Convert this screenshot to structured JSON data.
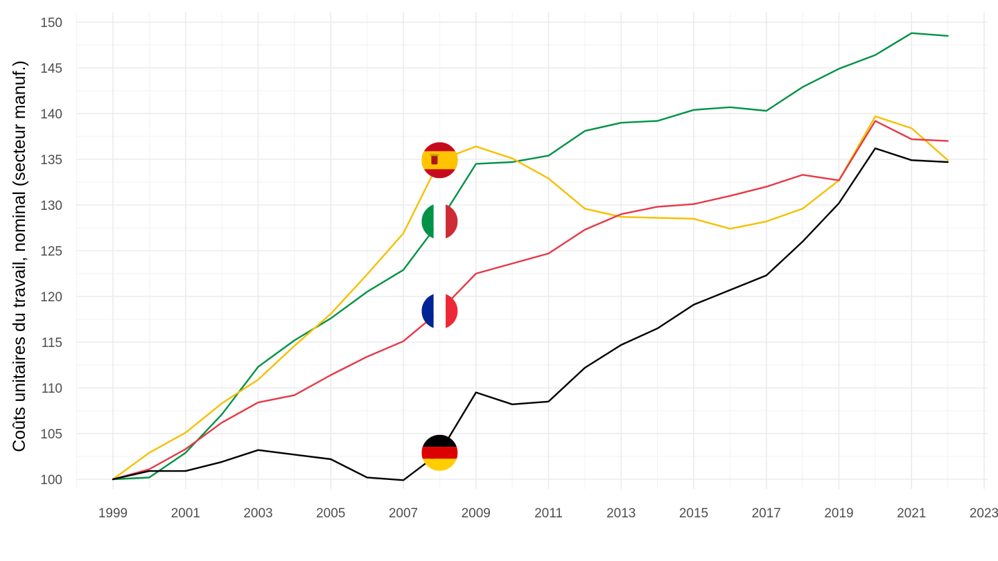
{
  "chart_data": {
    "type": "line",
    "title": "",
    "xlabel": "",
    "ylabel": "Coûts unitaires du travail, nominal (secteur manuf.)",
    "x": [
      1999,
      2000,
      2001,
      2002,
      2003,
      2004,
      2005,
      2006,
      2007,
      2008,
      2009,
      2010,
      2011,
      2012,
      2013,
      2014,
      2015,
      2016,
      2017,
      2018,
      2019,
      2020,
      2021,
      2022
    ],
    "xlim": [
      1999,
      2023
    ],
    "ylim": [
      100,
      150
    ],
    "x_ticks": [
      1999,
      2001,
      2003,
      2005,
      2007,
      2009,
      2011,
      2013,
      2015,
      2017,
      2019,
      2021,
      2023
    ],
    "x_tick_labels": [
      "1999",
      "2001",
      "2003",
      "2005",
      "2007",
      "2009",
      "2011",
      "2013",
      "2015",
      "2017",
      "2019",
      "2021",
      "2023"
    ],
    "y_ticks": [
      100,
      105,
      110,
      115,
      120,
      125,
      130,
      135,
      140,
      145,
      150
    ],
    "y_tick_labels": [
      "100",
      "105",
      "110",
      "115",
      "120",
      "125",
      "130",
      "135",
      "140",
      "145",
      "150"
    ],
    "grid": true,
    "legend": "flag markers at 2008",
    "series": [
      {
        "name": "Italie",
        "flag": "italy",
        "color": "#009246",
        "values": [
          100,
          100.2,
          102.9,
          107.1,
          112.3,
          115.2,
          117.6,
          120.5,
          122.9,
          128.2,
          134.5,
          134.7,
          135.4,
          138.1,
          139.0,
          139.2,
          140.4,
          140.7,
          140.3,
          142.9,
          144.9,
          146.4,
          148.8,
          148.5
        ]
      },
      {
        "name": "Espagne",
        "flag": "spain",
        "color": "#f6c000",
        "values": [
          100,
          102.9,
          105.1,
          108.3,
          110.9,
          114.6,
          118.1,
          122.4,
          126.9,
          134.9,
          136.4,
          135.1,
          132.9,
          129.6,
          128.7,
          128.6,
          128.5,
          127.4,
          128.2,
          129.6,
          132.7,
          139.7,
          138.4,
          134.9
        ]
      },
      {
        "name": "France",
        "flag": "france",
        "color": "#e63946",
        "values": [
          100,
          101.1,
          103.3,
          106.2,
          108.4,
          109.2,
          111.4,
          113.4,
          115.1,
          118.4,
          122.5,
          123.6,
          124.7,
          127.3,
          129.0,
          129.8,
          130.1,
          131.0,
          132.0,
          133.3,
          132.7,
          139.2,
          137.2,
          137.0
        ]
      },
      {
        "name": "Allemagne",
        "flag": "germany",
        "color": "#000000",
        "values": [
          100,
          100.9,
          100.9,
          101.9,
          103.2,
          102.7,
          102.2,
          100.2,
          99.9,
          102.9,
          109.5,
          108.2,
          108.5,
          112.2,
          114.7,
          116.5,
          119.1,
          120.7,
          122.3,
          126.0,
          130.2,
          136.2,
          134.9,
          134.7
        ]
      }
    ],
    "flag_markers": [
      {
        "flag": "spain",
        "x": 2008,
        "y": 134.9
      },
      {
        "flag": "italy",
        "x": 2008,
        "y": 128.2
      },
      {
        "flag": "france",
        "x": 2008,
        "y": 118.4
      },
      {
        "flag": "germany",
        "x": 2008,
        "y": 102.9
      }
    ]
  }
}
